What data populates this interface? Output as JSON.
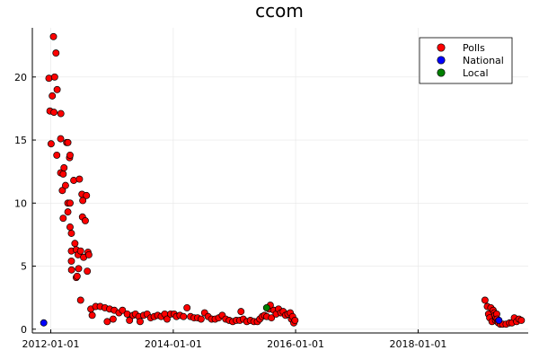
{
  "chart_data": {
    "type": "scatter",
    "title": "ccom",
    "xlabel": "",
    "ylabel": "",
    "x_axis": {
      "type": "date",
      "range": [
        "2011-09-13",
        "2019-10-20"
      ],
      "ticks": [
        "2012-01-01",
        "2014-01-01",
        "2016-01-01",
        "2018-01-01"
      ]
    },
    "y_axis": {
      "range": [
        -0.3,
        23.9
      ],
      "ticks": [
        0,
        5,
        10,
        15,
        20
      ]
    },
    "grid": true,
    "legend": {
      "placement": "top-right",
      "entries": [
        "Polls",
        "National",
        "Local"
      ]
    },
    "colors": {
      "Polls": "#ff0000",
      "National": "#0000ff",
      "Local": "#008000"
    },
    "series": [
      {
        "name": "Polls",
        "points": [
          [
            "2011-12-21",
            19.9
          ],
          [
            "2011-12-27",
            17.3
          ],
          [
            "2012-01-03",
            14.7
          ],
          [
            "2012-01-10",
            18.5
          ],
          [
            "2012-01-17",
            23.2
          ],
          [
            "2012-01-20",
            17.2
          ],
          [
            "2012-01-24",
            20.0
          ],
          [
            "2012-02-01",
            21.9
          ],
          [
            "2012-02-08",
            19.0
          ],
          [
            "2012-02-06",
            13.8
          ],
          [
            "2012-03-01",
            17.1
          ],
          [
            "2012-02-29",
            15.1
          ],
          [
            "2012-02-29",
            12.4
          ],
          [
            "2012-03-10",
            11.0
          ],
          [
            "2012-03-15",
            12.3
          ],
          [
            "2012-03-20",
            12.8
          ],
          [
            "2012-03-15",
            8.8
          ],
          [
            "2012-03-29",
            11.4
          ],
          [
            "2012-04-05",
            14.8
          ],
          [
            "2012-04-12",
            14.8
          ],
          [
            "2012-04-12",
            10.0
          ],
          [
            "2012-04-12",
            9.3
          ],
          [
            "2012-04-22",
            13.6
          ],
          [
            "2012-04-25",
            13.8
          ],
          [
            "2012-04-25",
            10.0
          ],
          [
            "2012-04-25",
            8.1
          ],
          [
            "2012-05-03",
            7.6
          ],
          [
            "2012-05-03",
            6.2
          ],
          [
            "2012-05-03",
            5.4
          ],
          [
            "2012-05-04",
            4.7
          ],
          [
            "2012-05-17",
            11.8
          ],
          [
            "2012-05-24",
            6.8
          ],
          [
            "2012-06-01",
            6.3
          ],
          [
            "2012-06-01",
            4.1
          ],
          [
            "2012-06-06",
            4.2
          ],
          [
            "2012-06-12",
            5.9
          ],
          [
            "2012-06-15",
            4.8
          ],
          [
            "2012-06-20",
            11.9
          ],
          [
            "2012-06-27",
            6.2
          ],
          [
            "2012-06-27",
            2.3
          ],
          [
            "2012-07-05",
            10.7
          ],
          [
            "2012-07-10",
            10.2
          ],
          [
            "2012-07-15",
            5.7
          ],
          [
            "2012-07-08",
            8.9
          ],
          [
            "2012-07-25",
            8.6
          ],
          [
            "2012-08-01",
            10.6
          ],
          [
            "2012-08-06",
            4.6
          ],
          [
            "2012-08-10",
            6.1
          ],
          [
            "2012-08-15",
            5.9
          ],
          [
            "2012-08-27",
            1.6
          ],
          [
            "2012-09-04",
            1.1
          ],
          [
            "2012-09-25",
            1.8
          ],
          [
            "2012-10-22",
            1.8
          ],
          [
            "2012-11-19",
            1.7
          ],
          [
            "2012-12-03",
            0.6
          ],
          [
            "2012-12-17",
            1.6
          ],
          [
            "2013-01-07",
            0.8
          ],
          [
            "2013-01-14",
            1.5
          ],
          [
            "2013-02-11",
            1.3
          ],
          [
            "2013-03-04",
            1.5
          ],
          [
            "2013-04-01",
            1.2
          ],
          [
            "2013-04-15",
            0.7
          ],
          [
            "2013-05-06",
            1.1
          ],
          [
            "2013-05-20",
            1.2
          ],
          [
            "2013-06-10",
            1.0
          ],
          [
            "2013-06-17",
            0.6
          ],
          [
            "2013-07-08",
            1.1
          ],
          [
            "2013-07-29",
            1.2
          ],
          [
            "2013-08-19",
            0.9
          ],
          [
            "2013-09-09",
            1.0
          ],
          [
            "2013-09-30",
            1.1
          ],
          [
            "2013-10-21",
            1.0
          ],
          [
            "2013-11-11",
            1.2
          ],
          [
            "2013-11-25",
            0.8
          ],
          [
            "2013-12-16",
            1.2
          ],
          [
            "2014-01-06",
            1.2
          ],
          [
            "2014-01-20",
            1.0
          ],
          [
            "2014-02-10",
            1.1
          ],
          [
            "2014-03-03",
            1.0
          ],
          [
            "2014-03-24",
            1.7
          ],
          [
            "2014-04-14",
            1.0
          ],
          [
            "2014-05-05",
            0.9
          ],
          [
            "2014-05-26",
            0.9
          ],
          [
            "2014-06-16",
            0.8
          ],
          [
            "2014-07-07",
            1.3
          ],
          [
            "2014-07-28",
            1.0
          ],
          [
            "2014-08-18",
            0.8
          ],
          [
            "2014-09-08",
            0.8
          ],
          [
            "2014-09-29",
            0.9
          ],
          [
            "2014-10-20",
            1.1
          ],
          [
            "2014-11-10",
            0.8
          ],
          [
            "2014-12-01",
            0.7
          ],
          [
            "2014-12-22",
            0.6
          ],
          [
            "2015-01-12",
            0.7
          ],
          [
            "2015-02-02",
            0.7
          ],
          [
            "2015-02-23",
            0.8
          ],
          [
            "2015-02-09",
            1.4
          ],
          [
            "2015-03-16",
            0.6
          ],
          [
            "2015-04-06",
            0.7
          ],
          [
            "2015-04-27",
            0.6
          ],
          [
            "2015-05-18",
            0.6
          ],
          [
            "2015-06-01",
            0.8
          ],
          [
            "2015-06-15",
            1.0
          ],
          [
            "2015-06-29",
            1.1
          ],
          [
            "2015-07-13",
            1.0
          ],
          [
            "2015-07-27",
            1.6
          ],
          [
            "2015-08-03",
            1.9
          ],
          [
            "2015-08-10",
            0.9
          ],
          [
            "2015-08-24",
            1.5
          ],
          [
            "2015-09-07",
            1.2
          ],
          [
            "2015-09-21",
            1.6
          ],
          [
            "2015-10-05",
            1.3
          ],
          [
            "2015-10-19",
            1.4
          ],
          [
            "2015-11-02",
            1.1
          ],
          [
            "2015-11-16",
            1.2
          ],
          [
            "2015-11-30",
            1.3
          ],
          [
            "2015-12-07",
            0.8
          ],
          [
            "2015-12-14",
            1.0
          ],
          [
            "2015-12-21",
            0.5
          ],
          [
            "2015-12-28",
            0.7
          ],
          [
            "2019-02-04",
            2.3
          ],
          [
            "2019-02-18",
            1.8
          ],
          [
            "2019-02-25",
            1.2
          ],
          [
            "2019-03-04",
            0.9
          ],
          [
            "2019-03-11",
            1.7
          ],
          [
            "2019-03-18",
            0.6
          ],
          [
            "2019-03-25",
            1.5
          ],
          [
            "2019-04-01",
            1.3
          ],
          [
            "2019-04-04",
            1.1
          ],
          [
            "2019-04-08",
            0.7
          ],
          [
            "2019-04-11",
            0.9
          ],
          [
            "2019-04-15",
            1.2
          ],
          [
            "2019-04-18",
            0.8
          ],
          [
            "2019-04-22",
            0.6
          ],
          [
            "2019-04-25",
            0.5
          ],
          [
            "2019-05-06",
            0.4
          ],
          [
            "2019-05-20",
            0.4
          ],
          [
            "2019-06-10",
            0.4
          ],
          [
            "2019-07-01",
            0.5
          ],
          [
            "2019-07-15",
            0.5
          ],
          [
            "2019-07-29",
            0.9
          ],
          [
            "2019-08-12",
            0.6
          ],
          [
            "2019-08-26",
            0.8
          ],
          [
            "2019-09-09",
            0.7
          ]
        ]
      },
      {
        "name": "National",
        "points": [
          [
            "2011-11-20",
            0.5
          ],
          [
            "2019-04-28",
            0.7
          ]
        ]
      },
      {
        "name": "Local",
        "points": [
          [
            "2015-07-12",
            1.7
          ]
        ]
      }
    ]
  }
}
